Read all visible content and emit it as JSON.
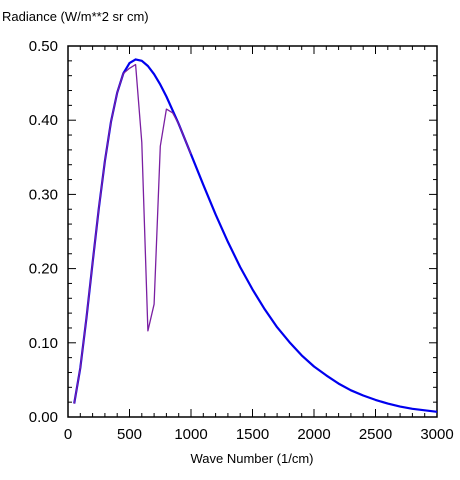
{
  "chart_data": {
    "type": "line",
    "title": "",
    "ylabel": "Radiance (W/m**2 sr cm)",
    "xlabel": "Wave Number (1/cm)",
    "xlim": [
      0,
      3000
    ],
    "ylim": [
      0,
      0.5
    ],
    "x_ticks": [
      0,
      500,
      1000,
      1500,
      2000,
      2500,
      3000
    ],
    "x_tick_labels": [
      "0",
      "500",
      "1000",
      "1500",
      "2000",
      "2500",
      "3000"
    ],
    "y_ticks": [
      0,
      0.1,
      0.2,
      0.3,
      0.4,
      0.5
    ],
    "y_tick_labels": [
      "0.00",
      "0.10",
      "0.20",
      "0.30",
      "0.40",
      "0.50"
    ],
    "grid": false,
    "series": [
      {
        "color": "#0000ee",
        "x": [
          50,
          100,
          150,
          200,
          250,
          300,
          350,
          400,
          450,
          500,
          550,
          600,
          650,
          700,
          750,
          800,
          900,
          1000,
          1100,
          1200,
          1300,
          1400,
          1500,
          1600,
          1700,
          1800,
          1900,
          2000,
          2100,
          2200,
          2300,
          2400,
          2500,
          2600,
          2700,
          2800,
          2900,
          3000
        ],
        "y": [
          0.018,
          0.066,
          0.134,
          0.208,
          0.281,
          0.345,
          0.398,
          0.437,
          0.463,
          0.477,
          0.482,
          0.48,
          0.473,
          0.462,
          0.448,
          0.432,
          0.395,
          0.354,
          0.313,
          0.273,
          0.236,
          0.202,
          0.172,
          0.145,
          0.121,
          0.101,
          0.083,
          0.068,
          0.056,
          0.045,
          0.036,
          0.029,
          0.023,
          0.018,
          0.014,
          0.011,
          0.009,
          0.007
        ]
      },
      {
        "color": "#7a1fa2",
        "x": [
          50,
          100,
          150,
          200,
          250,
          300,
          350,
          400,
          450,
          500,
          550,
          600,
          650,
          700,
          750,
          800,
          850,
          900,
          1000
        ],
        "y": [
          0.018,
          0.066,
          0.134,
          0.208,
          0.281,
          0.345,
          0.398,
          0.437,
          0.463,
          0.47,
          0.475,
          0.37,
          0.116,
          0.152,
          0.365,
          0.415,
          0.41,
          0.395,
          0.354
        ]
      }
    ]
  }
}
